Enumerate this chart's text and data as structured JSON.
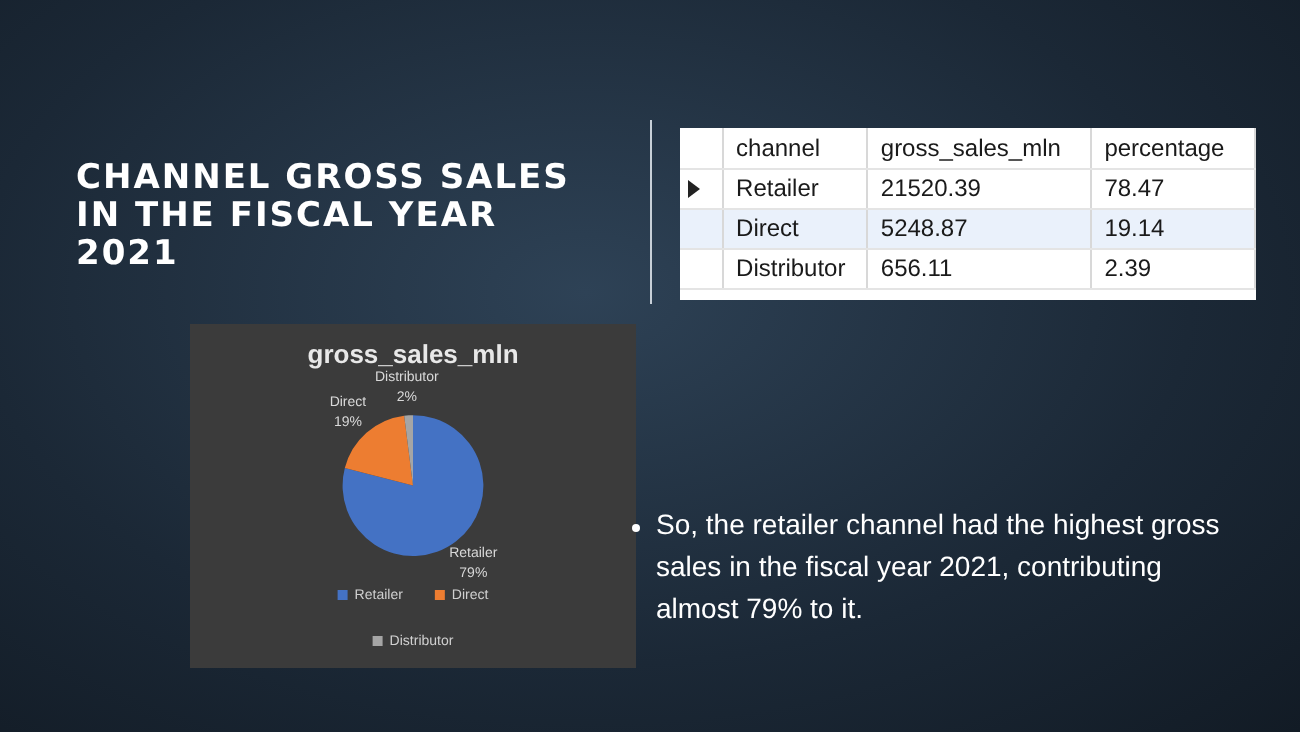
{
  "chart_data": {
    "type": "pie",
    "title": "gross_sales_mln",
    "categories": [
      "Retailer",
      "Direct",
      "Distributor"
    ],
    "values": [
      79,
      19,
      2
    ],
    "value_labels": [
      "79%",
      "19%",
      "2%"
    ],
    "colors": [
      "#4472c4",
      "#ed7d31",
      "#a5a5a5"
    ],
    "legend": "bottom",
    "annotations": [
      "CHANNEL GROSS SALES IN THE FISCAL YEAR 2021",
      "channel",
      "gross_sales_mln",
      "percentage",
      "Retailer",
      "21520.39",
      "78.47",
      "Direct",
      "5248.87",
      "19.14",
      "Distributor",
      "656.11",
      "2.39",
      "So, the retailer channel had the highest gross sales in the fiscal year 2021, contributing almost 79% to it."
    ]
  }
}
